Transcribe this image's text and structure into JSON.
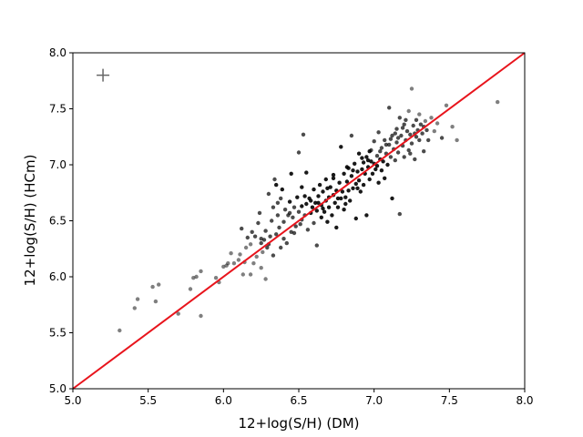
{
  "chart_data": {
    "type": "scatter",
    "title": "",
    "xlabel": "12+log(S/H) (DM)",
    "ylabel": "12+log(S/H) (HCm)",
    "xlim": [
      5.0,
      8.0
    ],
    "ylim": [
      5.0,
      8.0
    ],
    "xticks": [
      "5.0",
      "5.5",
      "6.0",
      "6.5",
      "7.0",
      "7.5",
      "8.0"
    ],
    "yticks": [
      "5.0",
      "5.5",
      "6.0",
      "6.5",
      "7.0",
      "7.5",
      "8.0"
    ],
    "grid": false,
    "reference_line": {
      "label": "",
      "x": [
        5.0,
        8.0
      ],
      "y": [
        5.0,
        8.0
      ],
      "color": "#e8141c"
    },
    "error_marker": {
      "x": 5.2,
      "y": 7.8
    },
    "point_color": "#000000",
    "points": [
      [
        5.31,
        5.52
      ],
      [
        5.41,
        5.72
      ],
      [
        5.43,
        5.8
      ],
      [
        5.53,
        5.91
      ],
      [
        5.55,
        5.78
      ],
      [
        5.57,
        5.93
      ],
      [
        5.7,
        5.67
      ],
      [
        5.78,
        5.89
      ],
      [
        5.8,
        5.99
      ],
      [
        5.82,
        6.0
      ],
      [
        5.85,
        6.05
      ],
      [
        5.85,
        5.65
      ],
      [
        5.95,
        5.99
      ],
      [
        5.97,
        5.95
      ],
      [
        6.0,
        6.09
      ],
      [
        6.02,
        6.1
      ],
      [
        6.03,
        6.12
      ],
      [
        6.05,
        6.21
      ],
      [
        6.07,
        6.12
      ],
      [
        6.1,
        6.15
      ],
      [
        6.11,
        6.2
      ],
      [
        6.12,
        6.43
      ],
      [
        6.13,
        6.02
      ],
      [
        6.14,
        6.13
      ],
      [
        6.15,
        6.26
      ],
      [
        6.16,
        6.35
      ],
      [
        6.18,
        6.29
      ],
      [
        6.19,
        6.4
      ],
      [
        6.2,
        6.12
      ],
      [
        6.21,
        6.36
      ],
      [
        6.22,
        6.18
      ],
      [
        6.23,
        6.48
      ],
      [
        6.24,
        6.57
      ],
      [
        6.25,
        6.08
      ],
      [
        6.25,
        6.3
      ],
      [
        6.26,
        6.22
      ],
      [
        6.27,
        6.33
      ],
      [
        6.28,
        5.98
      ],
      [
        6.28,
        6.41
      ],
      [
        6.29,
        6.26
      ],
      [
        6.3,
        6.74
      ],
      [
        6.31,
        6.36
      ],
      [
        6.32,
        6.5
      ],
      [
        6.33,
        6.19
      ],
      [
        6.33,
        6.62
      ],
      [
        6.34,
        6.87
      ],
      [
        6.35,
        6.38
      ],
      [
        6.35,
        6.82
      ],
      [
        6.36,
        6.55
      ],
      [
        6.37,
        6.44
      ],
      [
        6.38,
        6.26
      ],
      [
        6.38,
        6.7
      ],
      [
        6.39,
        6.78
      ],
      [
        6.4,
        6.34
      ],
      [
        6.4,
        6.49
      ],
      [
        6.41,
        6.6
      ],
      [
        6.42,
        6.3
      ],
      [
        6.43,
        6.55
      ],
      [
        6.44,
        6.67
      ],
      [
        6.45,
        6.92
      ],
      [
        6.45,
        6.4
      ],
      [
        6.46,
        6.53
      ],
      [
        6.47,
        6.62
      ],
      [
        6.48,
        6.45
      ],
      [
        6.49,
        6.71
      ],
      [
        6.5,
        6.58
      ],
      [
        6.5,
        7.11
      ],
      [
        6.51,
        6.47
      ],
      [
        6.52,
        6.63
      ],
      [
        6.52,
        6.8
      ],
      [
        6.53,
        7.27
      ],
      [
        6.54,
        6.55
      ],
      [
        6.55,
        6.65
      ],
      [
        6.55,
        6.93
      ],
      [
        6.56,
        6.42
      ],
      [
        6.57,
        6.7
      ],
      [
        6.58,
        6.57
      ],
      [
        6.59,
        6.62
      ],
      [
        6.6,
        6.78
      ],
      [
        6.6,
        6.48
      ],
      [
        6.61,
        6.66
      ],
      [
        6.62,
        6.28
      ],
      [
        6.62,
        6.59
      ],
      [
        6.63,
        6.72
      ],
      [
        6.64,
        6.82
      ],
      [
        6.65,
        6.53
      ],
      [
        6.65,
        6.64
      ],
      [
        6.66,
        6.76
      ],
      [
        6.67,
        6.58
      ],
      [
        6.68,
        6.87
      ],
      [
        6.68,
        6.68
      ],
      [
        6.69,
        6.49
      ],
      [
        6.7,
        6.62
      ],
      [
        6.7,
        6.71
      ],
      [
        6.71,
        6.8
      ],
      [
        6.72,
        6.55
      ],
      [
        6.73,
        6.73
      ],
      [
        6.73,
        6.91
      ],
      [
        6.74,
        6.66
      ],
      [
        6.75,
        6.77
      ],
      [
        6.75,
        6.44
      ],
      [
        6.76,
        6.62
      ],
      [
        6.77,
        6.84
      ],
      [
        6.78,
        6.7
      ],
      [
        6.78,
        7.16
      ],
      [
        6.79,
        6.76
      ],
      [
        6.8,
        6.92
      ],
      [
        6.8,
        6.6
      ],
      [
        6.81,
        6.71
      ],
      [
        6.82,
        6.85
      ],
      [
        6.82,
        6.98
      ],
      [
        6.83,
        6.77
      ],
      [
        6.84,
        6.68
      ],
      [
        6.85,
        7.26
      ],
      [
        6.85,
        6.9
      ],
      [
        6.86,
        6.79
      ],
      [
        6.87,
        7.01
      ],
      [
        6.88,
        6.83
      ],
      [
        6.88,
        6.52
      ],
      [
        6.89,
        6.94
      ],
      [
        6.9,
        6.86
      ],
      [
        6.9,
        7.1
      ],
      [
        6.91,
        6.76
      ],
      [
        6.92,
        6.96
      ],
      [
        6.93,
        7.02
      ],
      [
        6.93,
        6.82
      ],
      [
        6.94,
        6.92
      ],
      [
        6.95,
        7.07
      ],
      [
        6.95,
        6.55
      ],
      [
        6.96,
        6.98
      ],
      [
        6.97,
        6.87
      ],
      [
        6.98,
        7.13
      ],
      [
        6.98,
        7.03
      ],
      [
        6.99,
        6.92
      ],
      [
        7.0,
        7.01
      ],
      [
        7.0,
        7.21
      ],
      [
        7.01,
        6.96
      ],
      [
        7.02,
        7.08
      ],
      [
        7.03,
        6.84
      ],
      [
        7.03,
        7.29
      ],
      [
        7.04,
        7.05
      ],
      [
        7.05,
        6.95
      ],
      [
        7.05,
        7.15
      ],
      [
        7.06,
        7.03
      ],
      [
        7.07,
        7.22
      ],
      [
        7.07,
        6.88
      ],
      [
        7.08,
        7.1
      ],
      [
        7.09,
        7.0
      ],
      [
        7.1,
        7.18
      ],
      [
        7.1,
        7.51
      ],
      [
        7.11,
        7.07
      ],
      [
        7.12,
        7.26
      ],
      [
        7.12,
        6.7
      ],
      [
        7.13,
        7.14
      ],
      [
        7.14,
        7.04
      ],
      [
        7.15,
        7.32
      ],
      [
        7.15,
        7.2
      ],
      [
        7.16,
        7.11
      ],
      [
        7.17,
        6.56
      ],
      [
        7.17,
        7.42
      ],
      [
        7.18,
        7.26
      ],
      [
        7.19,
        7.17
      ],
      [
        7.2,
        7.07
      ],
      [
        7.2,
        7.36
      ],
      [
        7.21,
        7.22
      ],
      [
        7.22,
        7.3
      ],
      [
        7.23,
        7.13
      ],
      [
        7.23,
        7.48
      ],
      [
        7.24,
        7.27
      ],
      [
        7.25,
        7.19
      ],
      [
        7.25,
        7.68
      ],
      [
        7.26,
        7.35
      ],
      [
        7.27,
        7.05
      ],
      [
        7.28,
        7.25
      ],
      [
        7.28,
        7.4
      ],
      [
        7.29,
        7.31
      ],
      [
        7.3,
        7.22
      ],
      [
        7.3,
        7.45
      ],
      [
        7.31,
        7.36
      ],
      [
        7.32,
        7.28
      ],
      [
        7.33,
        7.12
      ],
      [
        7.34,
        7.39
      ],
      [
        7.35,
        7.31
      ],
      [
        7.36,
        7.22
      ],
      [
        7.38,
        7.42
      ],
      [
        7.4,
        7.3
      ],
      [
        7.42,
        7.37
      ],
      [
        7.45,
        7.24
      ],
      [
        7.48,
        7.53
      ],
      [
        7.52,
        7.34
      ],
      [
        7.55,
        7.22
      ],
      [
        7.82,
        7.56
      ],
      [
        6.25,
        6.34
      ],
      [
        6.36,
        6.66
      ],
      [
        6.44,
        6.57
      ],
      [
        6.52,
        6.51
      ],
      [
        6.58,
        6.68
      ],
      [
        6.66,
        6.61
      ],
      [
        6.73,
        6.88
      ],
      [
        6.81,
        6.65
      ],
      [
        6.86,
        6.95
      ],
      [
        6.92,
        7.06
      ],
      [
        6.97,
        7.12
      ],
      [
        7.02,
        6.99
      ],
      [
        7.08,
        7.18
      ],
      [
        7.14,
        7.28
      ],
      [
        7.19,
        7.33
      ],
      [
        7.24,
        7.1
      ],
      [
        6.47,
        6.39
      ],
      [
        6.54,
        6.72
      ],
      [
        6.63,
        6.66
      ],
      [
        6.69,
        6.79
      ],
      [
        6.76,
        6.7
      ],
      [
        6.83,
        6.97
      ],
      [
        6.89,
        6.79
      ],
      [
        6.96,
        7.04
      ],
      [
        7.04,
        7.12
      ],
      [
        7.11,
        7.23
      ],
      [
        7.16,
        7.24
      ],
      [
        7.21,
        7.4
      ],
      [
        7.27,
        7.28
      ],
      [
        7.33,
        7.34
      ],
      [
        6.18,
        6.02
      ],
      [
        6.3,
        6.29
      ]
    ]
  }
}
